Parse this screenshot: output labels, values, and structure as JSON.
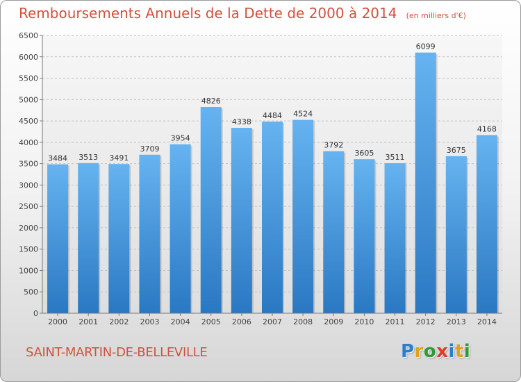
{
  "header": {
    "title": "Remboursements Annuels de la Dette de 2000 à 2014",
    "subtitle": "(en milliers d'€)"
  },
  "footer": {
    "commune": "SAINT-MARTIN-DE-BELLEVILLE",
    "logo_letters": [
      {
        "ch": "P",
        "color": "#2f7fc8"
      },
      {
        "ch": "r",
        "color": "#e0a020"
      },
      {
        "ch": "o",
        "color": "#2f9a3a"
      },
      {
        "ch": "x",
        "color": "#e03a2a"
      },
      {
        "ch": "i",
        "color": "#2f7fc8"
      },
      {
        "ch": "t",
        "color": "#e0a020"
      },
      {
        "ch": "i",
        "color": "#2f9a3a"
      }
    ]
  },
  "chart_data": {
    "type": "bar",
    "title": "Remboursements Annuels de la Dette de 2000 à 2014",
    "subtitle": "(en milliers d'€)",
    "categories": [
      "2000",
      "2001",
      "2002",
      "2003",
      "2004",
      "2005",
      "2006",
      "2007",
      "2008",
      "2009",
      "2010",
      "2011",
      "2012",
      "2013",
      "2014"
    ],
    "values": [
      3484,
      3513,
      3491,
      3709,
      3954,
      4826,
      4338,
      4484,
      4524,
      3792,
      3605,
      3511,
      6099,
      3675,
      4168
    ],
    "ylim": [
      0,
      6500
    ],
    "yticks": [
      0,
      500,
      1000,
      1500,
      2000,
      2500,
      3000,
      3500,
      4000,
      4500,
      5000,
      5500,
      6000,
      6500
    ],
    "grid": true,
    "bar_color": "#4f9fe2"
  }
}
